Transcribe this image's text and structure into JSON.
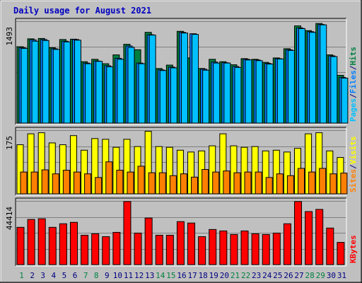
{
  "chart_data": {
    "title": "Daily usage for August 2021",
    "days": [
      "1",
      "2",
      "3",
      "4",
      "5",
      "6",
      "7",
      "8",
      "9",
      "10",
      "11",
      "12",
      "13",
      "14",
      "15",
      "16",
      "17",
      "18",
      "19",
      "20",
      "21",
      "22",
      "23",
      "24",
      "25",
      "26",
      "27",
      "28",
      "29",
      "30",
      "31"
    ],
    "weekend_days": [
      "1",
      "7",
      "8",
      "14",
      "15",
      "21",
      "22",
      "28",
      "29"
    ],
    "panels": [
      {
        "type": "bar",
        "max_label": "1493",
        "ylim": [
          0,
          1493
        ],
        "legend": [
          {
            "name": "Pages",
            "color": "#00c0ff"
          },
          {
            "name": "/",
            "color": "#000080"
          },
          {
            "name": "Files",
            "color": "#0080ff"
          },
          {
            "name": "/",
            "color": "#000080"
          },
          {
            "name": "Hits",
            "color": "#008040"
          }
        ],
        "series": [
          {
            "name": "Hits",
            "color": "#008040",
            "values": [
              1120,
              1235,
              1240,
              1105,
              1225,
              1230,
              900,
              935,
              870,
              1000,
              1155,
              1075,
              1330,
              800,
              850,
              1345,
              955,
              800,
              935,
              900,
              855,
              945,
              935,
              890,
              955,
              1090,
              1425,
              1355,
              1460,
              1000,
              700
            ]
          },
          {
            "name": "Files",
            "color": "#0080ff",
            "values": [
              1105,
              1220,
              1225,
              1090,
              1200,
              1225,
              880,
              910,
              840,
              950,
              1130,
              880,
              1295,
              780,
              820,
              1330,
              1310,
              790,
              895,
              885,
              830,
              935,
              925,
              875,
              945,
              1075,
              1395,
              1340,
              1445,
              985,
              670
            ]
          },
          {
            "name": "Pages",
            "color": "#00c0ff",
            "values": [
              1095,
              1200,
              1210,
              1080,
              1190,
              1215,
              870,
              905,
              825,
              935,
              1110,
              870,
              1290,
              770,
              810,
              1320,
              1300,
              775,
              880,
              880,
              815,
              925,
              915,
              865,
              940,
              1065,
              1385,
              1330,
              1440,
              975,
              660
            ]
          }
        ]
      },
      {
        "type": "bar",
        "max_label": "175",
        "ylim": [
          0,
          175
        ],
        "legend": [
          {
            "name": "Sites",
            "color": "#ff8000"
          },
          {
            "name": "/",
            "color": "#000080"
          },
          {
            "name": "Visits",
            "color": "#ffff00"
          }
        ],
        "series": [
          {
            "name": "Visits",
            "color": "#ffff00",
            "values": [
              135,
              165,
              168,
              140,
              135,
              160,
              120,
              152,
              150,
              128,
              150,
              130,
              172,
              130,
              128,
              120,
              115,
              118,
              132,
              165,
              132,
              128,
              130,
              118,
              120,
              115,
              125,
              165,
              168,
              118,
              100
            ]
          },
          {
            "name": "Sites",
            "color": "#ff8000",
            "values": [
              60,
              60,
              66,
              55,
              65,
              60,
              55,
              45,
              88,
              65,
              60,
              76,
              58,
              58,
              50,
              55,
              46,
              67,
              60,
              63,
              58,
              60,
              60,
              45,
              55,
              50,
              70,
              60,
              70,
              55,
              57
            ]
          }
        ]
      },
      {
        "type": "bar",
        "max_label": "44414",
        "ylim": [
          0,
          44414
        ],
        "legend": [
          {
            "name": "KBytes",
            "color": "#ff0000"
          }
        ],
        "series": [
          {
            "name": "KBytes",
            "color": "#ff0000",
            "values": [
              26000,
              31500,
              32000,
              26000,
              28500,
              29500,
              20500,
              21500,
              19500,
              22500,
              44000,
              22000,
              32500,
              20500,
              20500,
              30000,
              29000,
              19500,
              24500,
              23500,
              21000,
              23500,
              21500,
              21000,
              22000,
              28500,
              44000,
              37000,
              38500,
              25500,
              15500
            ]
          }
        ]
      }
    ]
  }
}
